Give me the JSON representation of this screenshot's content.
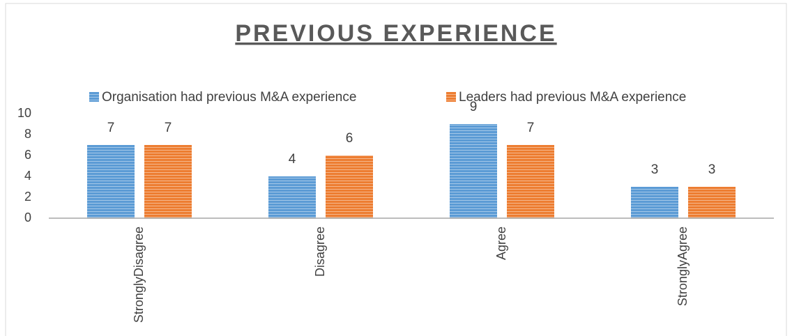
{
  "chart_data": {
    "type": "bar",
    "title": "PREVIOUS EXPERIENCE",
    "categories": [
      "StronglyDisagree",
      "Disagree",
      "Agree",
      "StronglyAgree"
    ],
    "series": [
      {
        "name": "Organisation had previous M&A experience",
        "color": "#5b9bd5",
        "values": [
          7,
          4,
          9,
          3
        ]
      },
      {
        "name": "Leaders had previous M&A experience",
        "color": "#ed7d31",
        "values": [
          7,
          6,
          7,
          3
        ]
      }
    ],
    "ylim": [
      0,
      10
    ],
    "yticks": [
      0,
      2,
      4,
      6,
      8,
      10
    ],
    "grid": false,
    "legend": "top"
  }
}
